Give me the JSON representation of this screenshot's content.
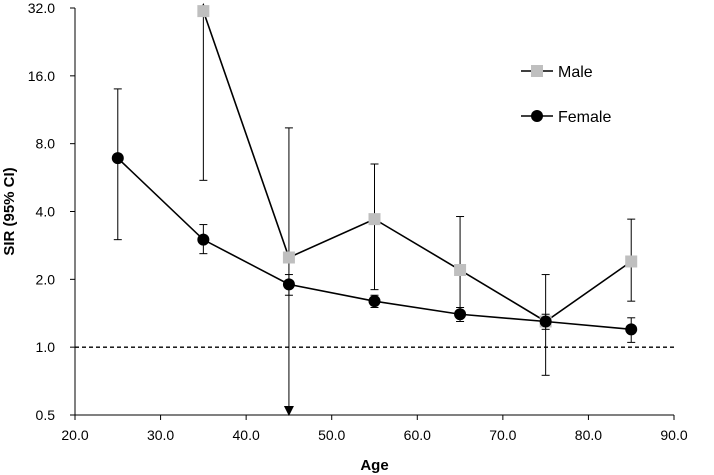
{
  "chart_data": {
    "type": "line",
    "title": "",
    "xlabel": "Age",
    "ylabel": "SIR (95% CI)",
    "xlim": [
      20,
      90
    ],
    "ylim": [
      0.5,
      32
    ],
    "yscale": "log2",
    "x_ticks": [
      20,
      30,
      40,
      50,
      60,
      70,
      80,
      90
    ],
    "x_tick_labels": [
      "20.0",
      "30.0",
      "40.0",
      "50.0",
      "60.0",
      "70.0",
      "80.0",
      "90.0"
    ],
    "y_ticks": [
      0.5,
      1,
      2,
      4,
      8,
      16,
      32
    ],
    "y_tick_labels": [
      "0.5",
      "1.0",
      "2.0",
      "4.0",
      "8.0",
      "16.0",
      "32.0"
    ],
    "legend_position": "top-right",
    "reference_line": {
      "y": 1.0,
      "style": "dashed"
    },
    "series": [
      {
        "name": "Male",
        "marker": "square",
        "color": "#bfbfbf",
        "line_color": "#000000",
        "x": [
          35,
          45,
          55,
          65,
          75,
          85
        ],
        "values": [
          31.0,
          2.5,
          3.7,
          2.2,
          1.3,
          2.4
        ],
        "ci_lower": [
          5.5,
          0.5,
          1.8,
          1.4,
          0.75,
          1.6
        ],
        "ci_upper": [
          32.0,
          9.4,
          6.5,
          3.8,
          2.1,
          3.7
        ],
        "ci_lower_truncated": [
          false,
          true,
          false,
          false,
          false,
          false
        ],
        "ci_upper_truncated": [
          true,
          false,
          false,
          false,
          false,
          false
        ]
      },
      {
        "name": "Female",
        "marker": "circle",
        "color": "#000000",
        "line_color": "#000000",
        "x": [
          25,
          35,
          45,
          55,
          65,
          75,
          85
        ],
        "values": [
          6.9,
          3.0,
          1.9,
          1.6,
          1.4,
          1.3,
          1.2
        ],
        "ci_lower": [
          3.0,
          2.6,
          1.7,
          1.5,
          1.3,
          1.2,
          1.05
        ],
        "ci_upper": [
          14.0,
          3.5,
          2.1,
          1.7,
          1.5,
          1.4,
          1.35
        ],
        "ci_lower_truncated": [
          false,
          false,
          false,
          false,
          false,
          false,
          false
        ],
        "ci_upper_truncated": [
          false,
          false,
          false,
          false,
          false,
          false,
          false
        ]
      }
    ]
  }
}
